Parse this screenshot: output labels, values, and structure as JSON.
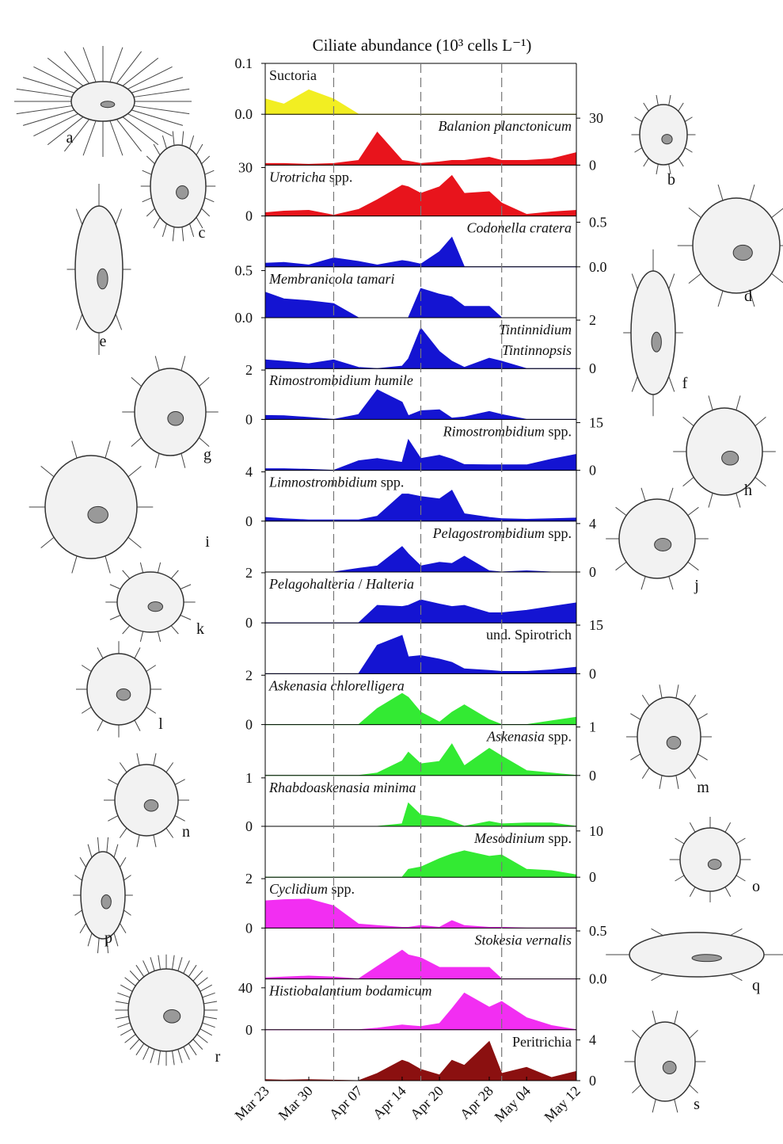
{
  "chart_data": {
    "type": "area",
    "title": "Ciliate abundance (10³ cells L⁻¹)",
    "x": [
      "Mar 23",
      "Mar 26",
      "Mar 30",
      "Apr 03",
      "Apr 07",
      "Apr 10",
      "Apr 14",
      "Apr 15",
      "Apr 17",
      "Apr 20",
      "Apr 22",
      "Apr 24",
      "Apr 28",
      "Apr 30",
      "May 04",
      "May 08",
      "May 12"
    ],
    "xlim": [
      "Mar 23",
      "May 12"
    ],
    "xticks": [
      "Mar 23",
      "Mar 30",
      "Apr 07",
      "Apr 14",
      "Apr 20",
      "Apr 28",
      "May 04",
      "May 12"
    ],
    "reference_lines": [
      "Apr 03",
      "Apr 17",
      "Apr 30"
    ],
    "series": [
      {
        "name": "Suctoria",
        "italic": false,
        "color": "#f2ee22",
        "axis": "y",
        "ylim": [
          0,
          0.1
        ],
        "yticks": [
          {
            "value": 0,
            "label": "0.0"
          },
          0.1
        ],
        "values": [
          0.03,
          0.02,
          0.048,
          0.03,
          0,
          0,
          0,
          0,
          0,
          0,
          0,
          0,
          0,
          0,
          0,
          0,
          0
        ]
      },
      {
        "name": "Balanion planctonicum",
        "italic": true,
        "color": "#e8141c",
        "axis": "y2",
        "ylim": [
          0,
          32.5
        ],
        "yticks": [
          0,
          30
        ],
        "values": [
          1,
          1,
          0.5,
          1,
          3,
          21,
          3,
          2.5,
          1,
          2,
          3,
          3,
          5,
          3,
          3,
          4,
          8
        ]
      },
      {
        "name": "Urotricha spp.",
        "italic": true,
        "color": "#e8141c",
        "axis": "y",
        "ylim": [
          0,
          31.5
        ],
        "yticks": [
          0,
          30
        ],
        "values": [
          2,
          3,
          3.5,
          0.5,
          4,
          10,
          19,
          18,
          14,
          18,
          25,
          14,
          15,
          8,
          1,
          2.5,
          3.5
        ]
      },
      {
        "name": "Codonella cratera",
        "italic": true,
        "color": "#1414d2",
        "axis": "y2",
        "ylim": [
          0,
          0.57
        ],
        "yticks": [
          {
            "value": 0,
            "label": "0.0"
          },
          0.5
        ],
        "values": [
          0.04,
          0.05,
          0.02,
          0.1,
          0.06,
          0.02,
          0.07,
          0.06,
          0.03,
          0.17,
          0.33,
          0,
          0,
          0,
          0,
          0,
          0
        ]
      },
      {
        "name": "Membranicola tamari",
        "italic": true,
        "color": "#1414d2",
        "axis": "y",
        "ylim": [
          0,
          0.54
        ],
        "yticks": [
          {
            "value": 0,
            "label": "0.0"
          },
          0.5
        ],
        "values": [
          0.27,
          0.2,
          0.18,
          0.15,
          0,
          0,
          0,
          0,
          0.31,
          0.25,
          0.22,
          0.12,
          0.12,
          0,
          0,
          0,
          0
        ]
      },
      {
        "name": [
          "Tintinnidium",
          "Tintinnopsis"
        ],
        "italic": true,
        "color": "#1414d2",
        "axis": "y2",
        "ylim": [
          0,
          2.1
        ],
        "yticks": [
          0,
          2
        ],
        "values": [
          0.36,
          0.3,
          0.2,
          0.36,
          0.05,
          0,
          0.1,
          0.4,
          1.67,
          0.7,
          0.3,
          0.05,
          0.43,
          0.3,
          0,
          0,
          0
        ]
      },
      {
        "name": "Rimostrombidium humile",
        "italic": true,
        "color": "#1414d2",
        "axis": "y",
        "ylim": [
          0,
          2.06
        ],
        "yticks": [
          0,
          2
        ],
        "values": [
          0.16,
          0.15,
          0.08,
          0,
          0.2,
          1.2,
          0.7,
          0.15,
          0.35,
          0.39,
          0.05,
          0.1,
          0.32,
          0.2,
          0,
          0,
          0
        ]
      },
      {
        "name": "Rimostrombidium spp.",
        "italic": true,
        "color": "#1414d2",
        "axis": "y2",
        "ylim": [
          0,
          16
        ],
        "yticks": [
          0,
          15
        ],
        "values": [
          0.5,
          0.5,
          0.3,
          0,
          3,
          3.7,
          2.5,
          9.6,
          3.7,
          4.7,
          3.5,
          1.8,
          1.7,
          1.7,
          1.7,
          3.5,
          5
        ]
      },
      {
        "name": "Limnostrombidium spp.",
        "italic": true,
        "color": "#1414d2",
        "axis": "y",
        "ylim": [
          0,
          4.13
        ],
        "yticks": [
          0,
          4
        ],
        "values": [
          0.3,
          0.2,
          0.1,
          0.1,
          0.1,
          0.4,
          2.2,
          2.2,
          2,
          1.8,
          2.5,
          0.6,
          0.3,
          0.2,
          0.15,
          0.2,
          0.25
        ]
      },
      {
        "name": "Pelagostrombidium spp.",
        "italic": true,
        "color": "#1414d2",
        "axis": "y2",
        "ylim": [
          0,
          4.2
        ],
        "yticks": [
          0,
          4
        ],
        "values": [
          0,
          0,
          0,
          0,
          0.3,
          0.5,
          2.1,
          1.5,
          0.5,
          0.8,
          0.7,
          1.3,
          0.1,
          0,
          0.1,
          0,
          0
        ]
      },
      {
        "name": "Pelagohalteria / Halteria",
        "italic": true,
        "color": "#1414d2",
        "axis": "y",
        "ylim": [
          0,
          2.03
        ],
        "yticks": [
          0,
          2
        ],
        "values": [
          0,
          0,
          0,
          0,
          0,
          0.7,
          0.65,
          0.7,
          0.92,
          0.75,
          0.65,
          0.7,
          0.4,
          0.4,
          0.5,
          0.65,
          0.8
        ]
      },
      {
        "name": "und. Spirotrich",
        "italic": false,
        "color": "#1414d2",
        "axis": "y2",
        "ylim": [
          0,
          15.7
        ],
        "yticks": [
          0,
          15
        ],
        "values": [
          0,
          0,
          0,
          0,
          0,
          8.8,
          11.8,
          5.2,
          5.6,
          4.5,
          3.5,
          1.5,
          1,
          0.7,
          0.7,
          1.2,
          2
        ]
      },
      {
        "name": "Askenasia chlorelligera",
        "italic": true,
        "color": "#33ea33",
        "axis": "y",
        "ylim": [
          0,
          2.06
        ],
        "yticks": [
          0,
          2
        ],
        "values": [
          0,
          0,
          0,
          0,
          0,
          0.65,
          1.26,
          1.1,
          0.5,
          0.1,
          0.5,
          0.8,
          0.2,
          0,
          0,
          0.15,
          0.3
        ]
      },
      {
        "name": "Askenasia spp.",
        "italic": true,
        "color": "#33ea33",
        "axis": "y2",
        "ylim": [
          0,
          1.05
        ],
        "yticks": [
          0,
          1
        ],
        "values": [
          0,
          0,
          0,
          0,
          0,
          0.05,
          0.3,
          0.48,
          0.24,
          0.29,
          0.65,
          0.2,
          0.56,
          0.4,
          0.1,
          0.05,
          0
        ]
      },
      {
        "name": "Rhabdoaskenasia minima",
        "italic": true,
        "color": "#33ea33",
        "axis": "y",
        "ylim": [
          0,
          1.05
        ],
        "yticks": [
          0,
          1
        ],
        "values": [
          0,
          0,
          0,
          0,
          0,
          0,
          0.05,
          0.48,
          0.23,
          0.18,
          0.1,
          0,
          0.1,
          0.05,
          0.07,
          0.07,
          0
        ]
      },
      {
        "name": "Mesodinium spp.",
        "italic": true,
        "color": "#33ea33",
        "axis": "y2",
        "ylim": [
          0,
          11
        ],
        "yticks": [
          0,
          10
        ],
        "values": [
          0,
          0,
          0,
          0,
          0,
          0,
          0,
          1.7,
          2.2,
          4,
          5,
          5.7,
          4.5,
          4.8,
          1.7,
          1.4,
          0.5
        ]
      },
      {
        "name": "Cyclidium spp.",
        "italic": true,
        "color": "#f22ef2",
        "axis": "y",
        "ylim": [
          0,
          2.06
        ],
        "yticks": [
          0,
          2
        ],
        "values": [
          1.1,
          1.15,
          1.17,
          0.9,
          0.16,
          0.1,
          0.03,
          0.03,
          0.1,
          0.03,
          0.3,
          0.1,
          0.03,
          0.03,
          0,
          0,
          0
        ]
      },
      {
        "name": "Stokesia vernalis",
        "italic": true,
        "color": "#f22ef2",
        "axis": "y2",
        "ylim": [
          0,
          0.53
        ],
        "yticks": [
          {
            "value": 0,
            "label": "0.0"
          },
          0.5
        ],
        "values": [
          0.01,
          0.02,
          0.03,
          0.02,
          0,
          0.13,
          0.3,
          0.25,
          0.22,
          0.12,
          0.12,
          0.12,
          0.12,
          0,
          0,
          0,
          0
        ]
      },
      {
        "name": "Histiobalantium bodamicum",
        "italic": true,
        "color": "#f22ef2",
        "axis": "y",
        "ylim": [
          0,
          48.5
        ],
        "yticks": [
          0,
          40
        ],
        "values": [
          0,
          0,
          0,
          0,
          0,
          1.5,
          4.6,
          4,
          3,
          6,
          20,
          35,
          21.5,
          27,
          11.5,
          4,
          0
        ]
      },
      {
        "name": "Peritrichia",
        "italic": false,
        "color": "#8b1010",
        "axis": "y2",
        "ylim": [
          0,
          5
        ],
        "yticks": [
          0,
          4
        ],
        "values": [
          0.1,
          0.05,
          0.1,
          0.05,
          0,
          0.7,
          2,
          1.8,
          1.1,
          0.55,
          2,
          1.5,
          3.85,
          0.7,
          1.3,
          0.3,
          0.9
        ]
      }
    ]
  },
  "illustrations": [
    "a",
    "b",
    "c",
    "d",
    "e",
    "f",
    "g",
    "h",
    "i",
    "j",
    "k",
    "l",
    "m",
    "n",
    "o",
    "p",
    "q",
    "r",
    "s"
  ]
}
